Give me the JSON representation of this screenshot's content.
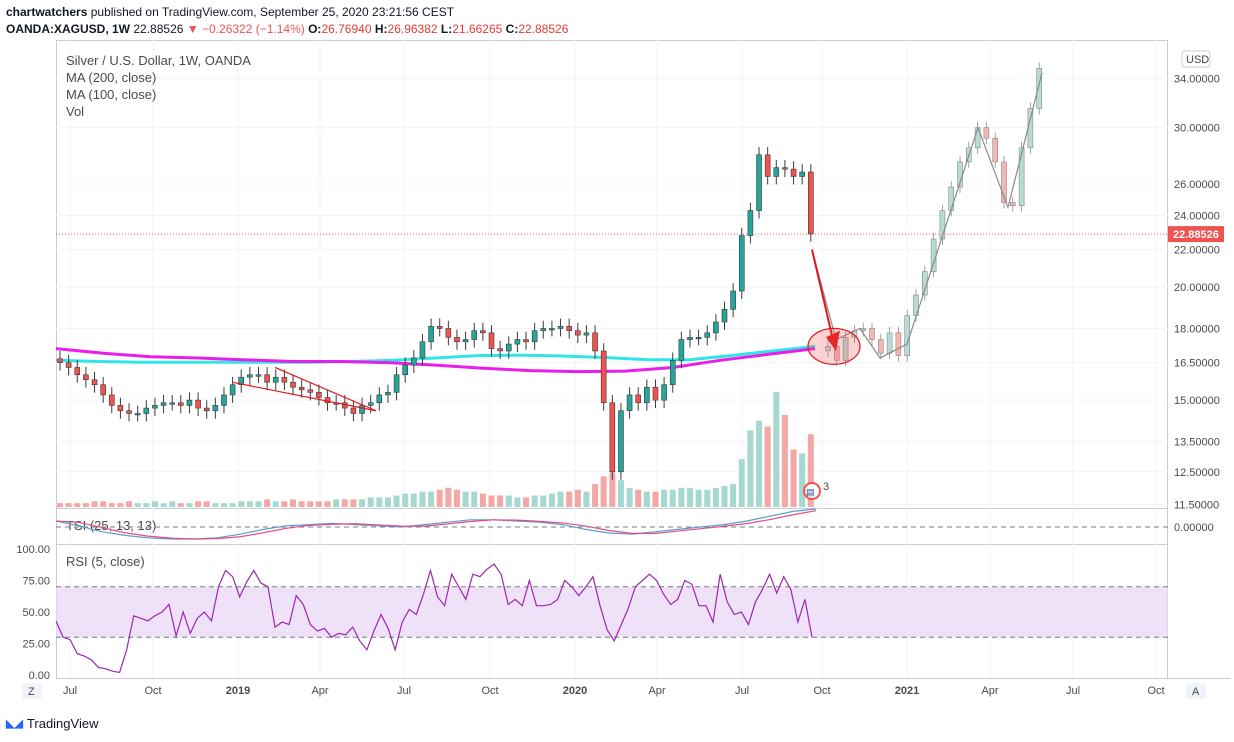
{
  "header": {
    "author": "chartwatchers",
    "published_text": "published on TradingView.com, September 25, 2020 23:21:56 CEST",
    "symbol": "OANDA:XAGUSD, 1W",
    "last": "22.88526",
    "change": "−0.26322 (−1.14%)",
    "o_label": "O:",
    "o": "26.76940",
    "h_label": "H:",
    "h": "26.96382",
    "l_label": "L:",
    "l": "21.66265",
    "c_label": "C:",
    "c": "22.88526"
  },
  "legend": {
    "title": "Silver / U.S. Dollar, 1W, OANDA",
    "ma200": "MA (200, close)",
    "ma100": "MA (100, close)",
    "vol": "Vol",
    "tsi": "TSI (25, 13, 13)",
    "rsi": "RSI (5, close)"
  },
  "currency_button": "USD",
  "price_tag": "22.88526",
  "flag_badge": "3",
  "scale_buttons": {
    "left": "Z",
    "right": "A"
  },
  "brand": "TradingView",
  "colors": {
    "up": "#26a69a",
    "down": "#ef5350",
    "ma200": "#e91ee8",
    "ma100": "#2ee6e6",
    "annotation": "#e3171a",
    "rsi": "#9c27b0",
    "rsi_band": "#e9d7f6",
    "tsi": "#5b9bd5",
    "tsi_signal": "#e04f7f"
  },
  "chart_data": [
    {
      "type": "candlestick",
      "title": "Silver / U.S. Dollar, 1W, OANDA",
      "x_ticks": [
        "Jul",
        "Oct",
        "2019",
        "Apr",
        "Jul",
        "Oct",
        "2020",
        "Apr",
        "Jul",
        "Oct",
        "2021",
        "Apr",
        "Jul",
        "Oct"
      ],
      "y_ticks": [
        "34.00000",
        "30.00000",
        "26.00000",
        "24.00000",
        "22.00000",
        "20.00000",
        "18.00000",
        "16.50000",
        "15.00000",
        "13.50000",
        "12.50000",
        "11.50000"
      ],
      "y_scale": "log",
      "ylim": [
        11.4,
        37.5
      ],
      "last_price": 22.88526,
      "close_path": [
        16.5,
        16.3,
        16.0,
        15.8,
        15.6,
        15.2,
        14.8,
        14.6,
        14.5,
        14.5,
        14.7,
        14.8,
        14.9,
        14.9,
        14.8,
        15.0,
        14.7,
        14.6,
        14.8,
        15.2,
        15.6,
        15.9,
        16.0,
        16.0,
        15.7,
        15.9,
        15.7,
        15.5,
        15.4,
        15.3,
        15.1,
        14.9,
        14.9,
        14.7,
        14.5,
        14.8,
        14.9,
        15.2,
        15.3,
        16.0,
        16.4,
        16.7,
        17.4,
        18.1,
        18.0,
        17.6,
        17.4,
        17.5,
        17.9,
        17.8,
        17.1,
        17.0,
        17.3,
        17.5,
        17.4,
        17.9,
        18.0,
        18.0,
        18.1,
        17.9,
        17.7,
        17.8,
        17.0,
        14.9,
        12.5,
        14.6,
        15.2,
        14.9,
        15.5,
        15.0,
        15.6,
        16.6,
        17.5,
        17.6,
        17.6,
        17.8,
        18.3,
        18.9,
        19.8,
        22.8,
        24.3,
        28.0,
        26.5,
        27.1,
        27.0,
        26.5,
        26.8,
        22.9
      ],
      "projected_candles": [
        17.2,
        16.6,
        17.6,
        17.9,
        18.0,
        17.5,
        16.9,
        17.8,
        16.8,
        18.6,
        19.6,
        20.8,
        22.6,
        24.3,
        25.8,
        27.5,
        28.5,
        30.0,
        29.2,
        27.5,
        24.8,
        24.6,
        28.5,
        31.5,
        34.9
      ],
      "projection_line": [
        {
          "x": "Sep 2020",
          "y": 22.0
        },
        {
          "x": "Oct 2020",
          "y": 17.5
        },
        {
          "x": "Nov 2020",
          "y": 18.0
        },
        {
          "x": "Dec 2020",
          "y": 16.7
        },
        {
          "x": "Jan 2021",
          "y": 17.3
        },
        {
          "x": "Mar 2021",
          "y": 30.0
        },
        {
          "x": "Apr 2021",
          "y": 24.5
        },
        {
          "x": "May 2021",
          "y": 34.5
        }
      ],
      "annotations": [
        "red wedge trendlines 2019",
        "red arrow down to MA cross",
        "circle at MA cross Oct 2020"
      ],
      "series": [
        {
          "name": "MA (200, close)",
          "values": [
            17.1,
            16.9,
            16.75,
            16.7,
            16.62,
            16.55,
            16.55,
            16.5,
            16.4,
            16.27,
            16.17,
            16.13,
            16.15,
            16.3,
            16.6,
            16.85,
            17.1
          ]
        },
        {
          "name": "MA (100, close)",
          "values": [
            16.6,
            16.55,
            16.52,
            16.52,
            16.52,
            16.52,
            16.52,
            16.55,
            16.6,
            16.7,
            16.8,
            16.82,
            16.78,
            16.72,
            16.63,
            16.62,
            16.8,
            17.0,
            17.2
          ]
        }
      ]
    },
    {
      "type": "bar",
      "name": "Vol",
      "values": [
        2,
        2,
        2,
        2,
        3,
        3,
        2,
        2,
        3,
        2,
        2,
        3,
        2,
        3,
        2,
        2,
        3,
        3,
        2,
        2,
        2,
        3,
        3,
        3,
        4,
        3,
        3,
        4,
        3,
        3,
        3,
        3,
        4,
        4,
        4,
        4,
        5,
        5,
        5,
        6,
        7,
        7,
        8,
        8,
        9,
        10,
        9,
        8,
        8,
        7,
        6,
        6,
        6,
        5,
        5,
        6,
        6,
        7,
        8,
        8,
        9,
        8,
        12,
        16,
        18,
        14,
        10,
        9,
        8,
        8,
        9,
        9,
        10,
        10,
        9,
        9,
        10,
        11,
        12,
        25,
        40,
        45,
        42,
        60,
        48,
        30,
        28,
        38
      ]
    },
    {
      "type": "line",
      "name": "TSI (25, 13, 13)",
      "y_ticks": [
        "0.00000"
      ]
    },
    {
      "type": "line",
      "name": "RSI (5, close)",
      "y_ticks": [
        "100.00",
        "75.00",
        "50.00",
        "25.00",
        "0.00"
      ],
      "ylim": [
        0,
        100
      ],
      "band": [
        30,
        70
      ],
      "values": [
        43,
        30,
        28,
        17,
        15,
        12,
        6,
        5,
        3,
        2,
        20,
        47,
        45,
        43,
        47,
        50,
        56,
        31,
        50,
        33,
        45,
        50,
        43,
        70,
        83,
        78,
        62,
        74,
        83,
        73,
        70,
        38,
        42,
        40,
        63,
        56,
        40,
        35,
        37,
        30,
        33,
        32,
        38,
        27,
        20,
        35,
        48,
        37,
        20,
        42,
        52,
        48,
        64,
        83,
        62,
        55,
        80,
        70,
        60,
        80,
        78,
        84,
        88,
        80,
        56,
        60,
        55,
        75,
        55,
        55,
        56,
        60,
        75,
        70,
        63,
        70,
        78,
        55,
        36,
        27,
        40,
        53,
        70,
        75,
        80,
        75,
        64,
        56,
        60,
        75,
        72,
        55,
        55,
        42,
        80,
        58,
        48,
        50,
        40,
        58,
        68,
        80,
        65,
        78,
        68,
        42,
        60,
        30
      ]
    }
  ]
}
